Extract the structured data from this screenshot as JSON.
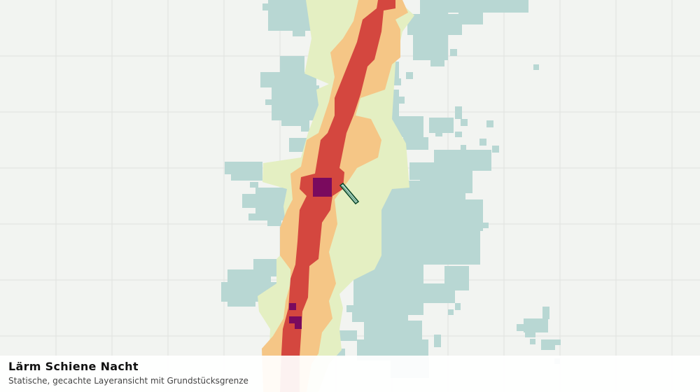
{
  "header": {
    "title": "Lärm Schiene Nacht",
    "subtitle": "Statische, gecachte Layeransicht mit Grundstücksgrenze"
  }
}
